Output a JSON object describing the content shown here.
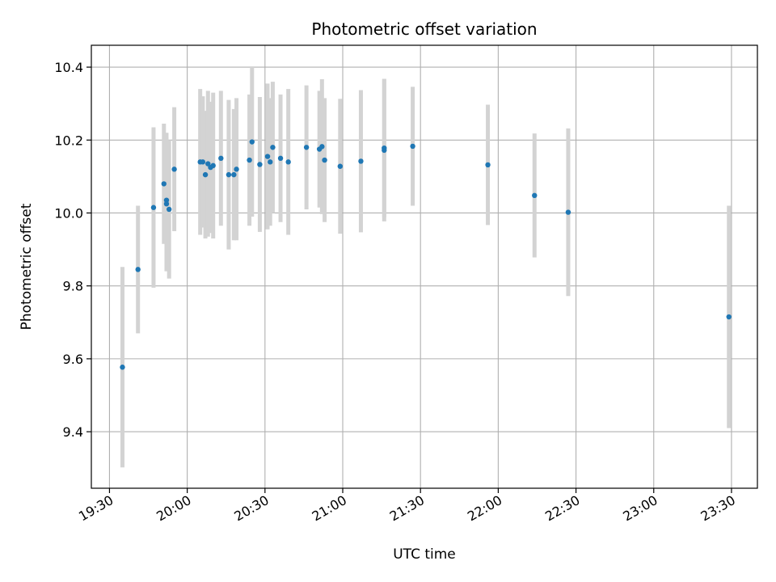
{
  "chart_data": {
    "type": "scatter",
    "title": "Photometric offset variation",
    "xlabel": "UTC time",
    "ylabel": "Photometric offset",
    "x_tick_labels": [
      "19:30",
      "20:00",
      "20:30",
      "21:00",
      "21:30",
      "22:00",
      "22:30",
      "23:00",
      "23:30"
    ],
    "x_ticks": [
      "19:30",
      "20:00",
      "20:30",
      "21:00",
      "21:30",
      "22:00",
      "22:30",
      "23:00",
      "23:30"
    ],
    "y_ticks": [
      9.4,
      9.6,
      9.8,
      10.0,
      10.2,
      10.4
    ],
    "y_tick_labels": [
      "9.4",
      "9.6",
      "9.8",
      "10.0",
      "10.2",
      "10.4"
    ],
    "xlim": [
      "19:23",
      "23:40"
    ],
    "ylim": [
      9.245,
      10.46
    ],
    "grid": true,
    "marker_color": "#1f77b4",
    "errorbar_color": "#d3d3d3",
    "points": [
      {
        "x": "19:35",
        "y": 9.577,
        "yerr": 0.275
      },
      {
        "x": "19:41",
        "y": 9.845,
        "yerr": 0.175
      },
      {
        "x": "19:47",
        "y": 10.015,
        "yerr": 0.22
      },
      {
        "x": "19:51",
        "y": 10.08,
        "yerr": 0.165
      },
      {
        "x": "19:52",
        "y": 10.035,
        "yerr": 0.185
      },
      {
        "x": "19:52",
        "y": 10.025,
        "yerr": 0.185
      },
      {
        "x": "19:53",
        "y": 10.01,
        "yerr": 0.19
      },
      {
        "x": "19:55",
        "y": 10.12,
        "yerr": 0.17
      },
      {
        "x": "20:05",
        "y": 10.14,
        "yerr": 0.2
      },
      {
        "x": "20:06",
        "y": 10.14,
        "yerr": 0.18
      },
      {
        "x": "20:07",
        "y": 10.105,
        "yerr": 0.175
      },
      {
        "x": "20:08",
        "y": 10.135,
        "yerr": 0.2
      },
      {
        "x": "20:09",
        "y": 10.125,
        "yerr": 0.18
      },
      {
        "x": "20:10",
        "y": 10.13,
        "yerr": 0.2
      },
      {
        "x": "20:13",
        "y": 10.15,
        "yerr": 0.185
      },
      {
        "x": "20:16",
        "y": 10.105,
        "yerr": 0.205
      },
      {
        "x": "20:18",
        "y": 10.105,
        "yerr": 0.18
      },
      {
        "x": "20:19",
        "y": 10.12,
        "yerr": 0.195
      },
      {
        "x": "20:24",
        "y": 10.145,
        "yerr": 0.18
      },
      {
        "x": "20:25",
        "y": 10.195,
        "yerr": 0.205
      },
      {
        "x": "20:28",
        "y": 10.133,
        "yerr": 0.185
      },
      {
        "x": "20:31",
        "y": 10.155,
        "yerr": 0.2
      },
      {
        "x": "20:32",
        "y": 10.14,
        "yerr": 0.175
      },
      {
        "x": "20:33",
        "y": 10.18,
        "yerr": 0.18
      },
      {
        "x": "20:36",
        "y": 10.15,
        "yerr": 0.175
      },
      {
        "x": "20:39",
        "y": 10.14,
        "yerr": 0.2
      },
      {
        "x": "20:46",
        "y": 10.18,
        "yerr": 0.17
      },
      {
        "x": "20:51",
        "y": 10.175,
        "yerr": 0.16
      },
      {
        "x": "20:52",
        "y": 10.182,
        "yerr": 0.185
      },
      {
        "x": "20:53",
        "y": 10.145,
        "yerr": 0.17
      },
      {
        "x": "20:59",
        "y": 10.128,
        "yerr": 0.185
      },
      {
        "x": "21:07",
        "y": 10.142,
        "yerr": 0.195
      },
      {
        "x": "21:16",
        "y": 10.172,
        "yerr": 0.195
      },
      {
        "x": "21:16",
        "y": 10.178,
        "yerr": 0.19
      },
      {
        "x": "21:27",
        "y": 10.183,
        "yerr": 0.163
      },
      {
        "x": "21:56",
        "y": 10.132,
        "yerr": 0.165
      },
      {
        "x": "22:14",
        "y": 10.048,
        "yerr": 0.17
      },
      {
        "x": "22:27",
        "y": 10.002,
        "yerr": 0.23
      },
      {
        "x": "23:29",
        "y": 9.715,
        "yerr": 0.305
      }
    ]
  }
}
